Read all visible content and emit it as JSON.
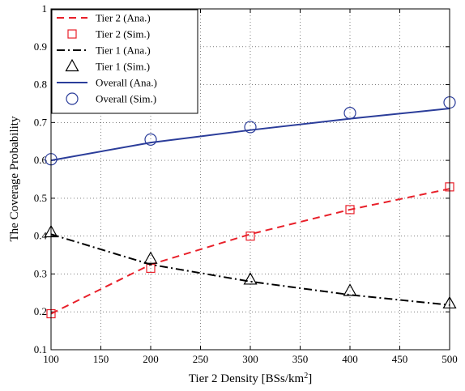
{
  "chart_data": {
    "type": "line",
    "title": "",
    "xlabel": "Tier 2 Density [BSs/km",
    "xlabel_sup": "2",
    "xlabel_tail": "]",
    "ylabel": "The Coverage Probability",
    "xlim": [
      100,
      500
    ],
    "ylim": [
      0.1,
      1.0
    ],
    "xticks": [
      "100",
      "150",
      "200",
      "250",
      "300",
      "350",
      "400",
      "450",
      "500"
    ],
    "yticks": [
      "0.1",
      "0.2",
      "0.3",
      "0.4",
      "0.5",
      "0.6",
      "0.7",
      "0.8",
      "0.9",
      "1"
    ],
    "grid": true,
    "legend_position": "top-left",
    "series": [
      {
        "name": "Tier 2 (Ana.)",
        "kind": "line",
        "style": "dashed",
        "color": "#e8202a",
        "x": [
          100,
          200,
          300,
          400,
          500
        ],
        "values": [
          0.195,
          0.325,
          0.405,
          0.47,
          0.525
        ]
      },
      {
        "name": "Tier 2 (Sim.)",
        "kind": "marker",
        "marker": "square",
        "color": "#e8202a",
        "x": [
          100,
          200,
          300,
          400,
          500
        ],
        "values": [
          0.195,
          0.315,
          0.4,
          0.47,
          0.53
        ]
      },
      {
        "name": "Tier 1 (Ana.)",
        "kind": "line",
        "style": "dashdot",
        "color": "#000000",
        "x": [
          100,
          200,
          300,
          400,
          500
        ],
        "values": [
          0.405,
          0.325,
          0.28,
          0.245,
          0.218
        ]
      },
      {
        "name": "Tier 1 (Sim.)",
        "kind": "marker",
        "marker": "triangle",
        "color": "#000000",
        "x": [
          100,
          200,
          300,
          400,
          500
        ],
        "values": [
          0.41,
          0.34,
          0.285,
          0.255,
          0.222
        ]
      },
      {
        "name": "Overall (Ana.)",
        "kind": "line",
        "style": "solid",
        "color": "#2b3d9a",
        "x": [
          100,
          200,
          300,
          400,
          500
        ],
        "values": [
          0.6,
          0.647,
          0.68,
          0.71,
          0.737
        ]
      },
      {
        "name": "Overall (Sim.)",
        "kind": "marker",
        "marker": "circle",
        "color": "#2b3d9a",
        "x": [
          100,
          200,
          300,
          400,
          500
        ],
        "values": [
          0.603,
          0.655,
          0.688,
          0.725,
          0.753
        ]
      }
    ]
  }
}
